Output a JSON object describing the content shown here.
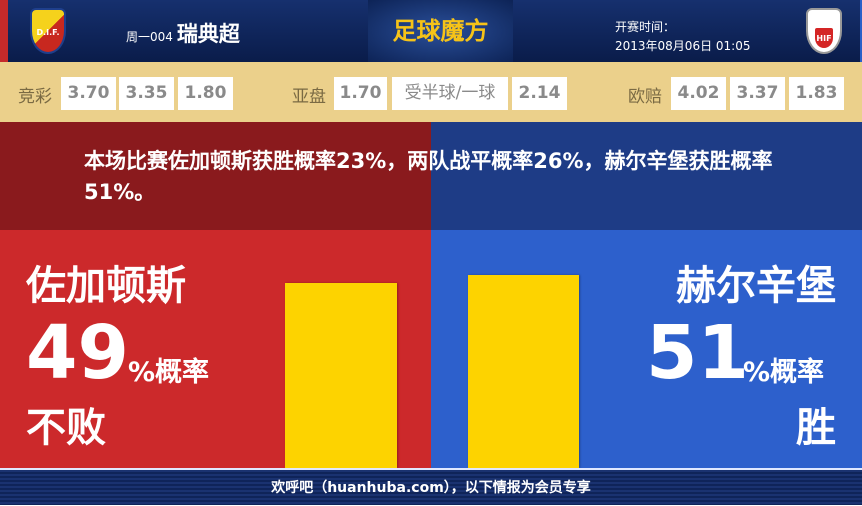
{
  "header": {
    "home_logo_text": "D.I.F.",
    "away_logo_text": "HIF",
    "match_no": "周一004",
    "league": "瑞典超",
    "brand": "足球魔方",
    "time_label": "开赛时间：",
    "time_value": "2013年08月06日 01:05"
  },
  "odds": {
    "jingcai": {
      "label": "竞彩",
      "values": [
        "3.70",
        "3.35",
        "1.80"
      ]
    },
    "yapan": {
      "label": "亚盘",
      "values": [
        "1.70",
        "受半球/一球",
        "2.14"
      ]
    },
    "oupei": {
      "label": "欧赔",
      "values": [
        "4.02",
        "3.37",
        "1.83"
      ]
    }
  },
  "summary": "本场比赛佐加顿斯获胜概率23%，两队战平概率26%，赫尔辛堡获胜概率51%。",
  "home": {
    "name": "佐加顿斯",
    "percent": "49",
    "percent_label": "%概率",
    "result": "不败",
    "bar_value": 49
  },
  "away": {
    "name": "赫尔辛堡",
    "percent": "51",
    "percent_label": "%概率",
    "result": "胜",
    "bar_value": 51
  },
  "colors": {
    "home": "#cc292b",
    "away": "#2d60cc",
    "bar": "#fdd300"
  },
  "footer": "欢呼吧（huanhuba.com），以下情报为会员专享"
}
